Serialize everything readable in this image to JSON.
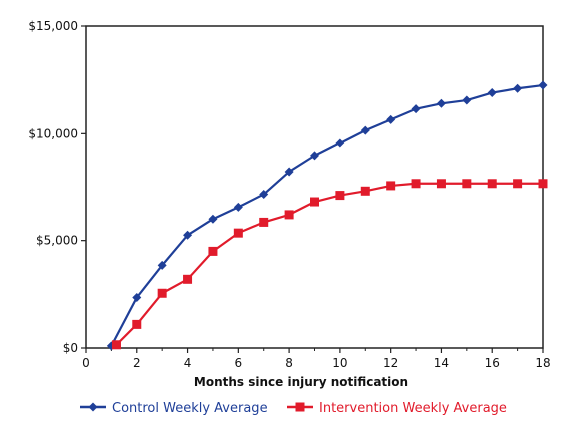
{
  "chart_data": {
    "type": "line",
    "title": "",
    "xlabel": "Months since injury notification",
    "ylabel": "",
    "xlim": [
      0,
      18
    ],
    "ylim": [
      0,
      15000
    ],
    "x_ticks": [
      0,
      2,
      4,
      6,
      8,
      10,
      12,
      14,
      16,
      18
    ],
    "x_tick_labels": [
      "0",
      "2",
      "4",
      "6",
      "8",
      "10",
      "12",
      "14",
      "16",
      "18"
    ],
    "y_ticks": [
      0,
      5000,
      10000,
      15000
    ],
    "y_tick_labels": [
      "$0",
      "$5,000",
      "$10,000",
      "$15,000"
    ],
    "grid": false,
    "legend_position": "bottom",
    "series": [
      {
        "name": "Control Weekly Average",
        "color": "#1f3f98",
        "marker": "diamond",
        "x": [
          1,
          2,
          3,
          4,
          5,
          6,
          7,
          8,
          9,
          10,
          11,
          12,
          13,
          14,
          15,
          16,
          17,
          18
        ],
        "values": [
          100,
          2350,
          3850,
          5250,
          6000,
          6550,
          7150,
          8200,
          8950,
          9550,
          10150,
          10650,
          11150,
          11400,
          11550,
          11900,
          12100,
          12250
        ]
      },
      {
        "name": "Intervention Weekly Average",
        "color": "#e11b2b",
        "marker": "square",
        "x": [
          1.2,
          2,
          3,
          4,
          5,
          6,
          7,
          8,
          9,
          10,
          11,
          12,
          13,
          14,
          15,
          16,
          17,
          18
        ],
        "values": [
          150,
          1100,
          2550,
          3200,
          4500,
          5350,
          5850,
          6200,
          6800,
          7100,
          7300,
          7550,
          7650,
          7650,
          7650,
          7650,
          7650,
          7650
        ]
      }
    ]
  }
}
